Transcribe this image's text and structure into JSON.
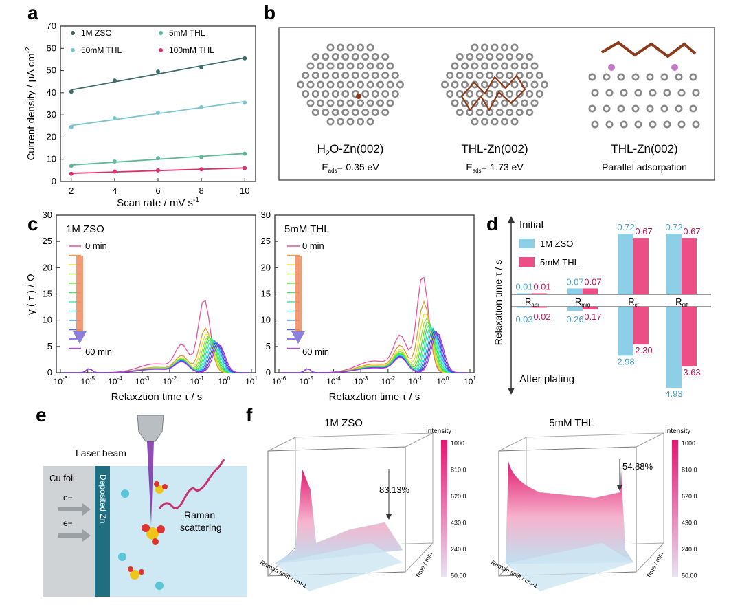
{
  "panel_letters": {
    "a": "a",
    "b": "b",
    "c": "c",
    "d": "d",
    "e": "e",
    "f": "f"
  },
  "colors": {
    "zso": "#3f6b6b",
    "thl50": "#7cc3cf",
    "thl5": "#5fb89c",
    "thl100": "#d6336c",
    "blue": "#8ecfe8",
    "pink": "#ec4f86",
    "zn": "#888888",
    "c_atom": "#8b3a1a"
  },
  "chart_data": [
    {
      "id": "a",
      "type": "scatter",
      "title": "",
      "xlabel": "Scan rate / mV s-1",
      "ylabel": "Current density / μA cm-2",
      "xlim": [
        1.5,
        10.5
      ],
      "ylim": [
        0,
        70
      ],
      "xticks": [
        "2",
        "4",
        "6",
        "8",
        "10"
      ],
      "yticks": [
        "0",
        "10",
        "20",
        "30",
        "40",
        "50",
        "60",
        "70"
      ],
      "x": [
        2,
        4,
        6,
        8,
        10
      ],
      "series": [
        {
          "name": "1M ZSO",
          "values": [
            40.5,
            45.5,
            49.5,
            51.5,
            55.5
          ]
        },
        {
          "name": "5mM THL",
          "values": [
            7,
            9,
            10.5,
            11,
            12.5
          ]
        },
        {
          "name": "50mM THL",
          "values": [
            24.5,
            28.5,
            31,
            33.5,
            35.5
          ]
        },
        {
          "name": "100mM THL",
          "values": [
            3.5,
            4.5,
            5,
            5.5,
            6
          ]
        }
      ]
    },
    {
      "id": "c1",
      "type": "line",
      "label": "1M ZSO",
      "xlabel": "Relaxztion time τ / s",
      "ylabel": "γ ( τ ) / Ω",
      "ylim": [
        0,
        30
      ],
      "yticks": [
        "0",
        "5",
        "10",
        "15",
        "20",
        "25",
        "30"
      ],
      "xticks": [
        "10-6",
        "10-5",
        "10-4",
        "10-3",
        "10-2",
        "10-1",
        "100",
        "101"
      ],
      "time_start": "0 min",
      "time_end": "60 min",
      "peak_max": [
        14,
        8.5,
        7.5,
        7,
        6.8,
        6.6,
        6.4,
        6.2,
        6,
        5.8,
        5.6,
        5.4
      ]
    },
    {
      "id": "c2",
      "type": "line",
      "label": "5mM THL",
      "xlabel": "Relaxztion time τ / s",
      "ylabel": "",
      "ylim": [
        0,
        30
      ],
      "yticks": [
        "0",
        "5",
        "10",
        "15",
        "20",
        "25",
        "30"
      ],
      "xticks": [
        "10-6",
        "10-5",
        "10-4",
        "10-3",
        "10-2",
        "10-1",
        "100",
        "101"
      ],
      "time_start": "0 min",
      "time_end": "60 min",
      "peak_max": [
        18.5,
        13.5,
        11.5,
        10.5,
        9.8,
        9.3,
        8.9,
        8.6,
        8.3,
        8,
        7.8,
        7.6
      ]
    },
    {
      "id": "d",
      "type": "bar",
      "ylabel": "Relaxation time τ / s",
      "top_label": "Initial",
      "bottom_label": "After plating",
      "categories": [
        "Rabi",
        "Rmig",
        "Rct",
        "Rdif"
      ],
      "category_main": [
        "R",
        "R",
        "R",
        "R"
      ],
      "category_sub": [
        "abi",
        "mig",
        "ct",
        "dif"
      ],
      "legend": [
        "1M ZSO",
        "5mM THL"
      ],
      "initial": {
        "1M ZSO": [
          0.01,
          0.07,
          0.72,
          0.72
        ],
        "5mM THL": [
          0.01,
          0.07,
          0.67,
          0.67
        ]
      },
      "after": {
        "1M ZSO": [
          0.03,
          0.26,
          2.98,
          4.93
        ],
        "5mM THL": [
          0.02,
          0.17,
          2.3,
          3.63
        ]
      },
      "initial_labels": {
        "1M ZSO": [
          "0.01",
          "0.07",
          "0.72",
          "0.72"
        ],
        "5mM THL": [
          "0.01",
          "0.07",
          "0.67",
          "0.67"
        ]
      },
      "after_labels": {
        "1M ZSO": [
          "0.03",
          "0.26",
          "2.98",
          "4.93"
        ],
        "5mM THL": [
          "0.02",
          "0.17",
          "2.30",
          "3.63"
        ]
      }
    },
    {
      "id": "f1",
      "type": "surface",
      "title": "1M ZSO",
      "annotation": "83.13%",
      "colorbar_title": "Intensity",
      "colorbar_ticks": [
        "1000",
        "810.0",
        "620.0",
        "430.0",
        "240.0",
        "50.00"
      ],
      "xlabel": "Raman shift / cm-1",
      "ylabel": "Time / min"
    },
    {
      "id": "f2",
      "type": "surface",
      "title": "5mM THL",
      "annotation": "54.88%",
      "colorbar_title": "Intensity",
      "colorbar_ticks": [
        "1000",
        "810.0",
        "620.0",
        "430.0",
        "240.0",
        "50.00"
      ],
      "xlabel": "Raman shift / cm-1",
      "ylabel": "Time / min"
    }
  ],
  "panel_b": {
    "structures": [
      {
        "title": "H2O-Zn(002)",
        "energy": "Eads=-0.35 eV"
      },
      {
        "title": "THL-Zn(002)",
        "energy": "Eads=-1.73 eV"
      },
      {
        "title": "THL-Zn(002)",
        "energy": "Parallel adsorpation"
      }
    ]
  },
  "panel_e": {
    "laser": "Laser beam",
    "cu": "Cu foil",
    "deposit": "Deposited Zn",
    "electron": "e−",
    "raman1": "Raman",
    "raman2": "scattering"
  }
}
